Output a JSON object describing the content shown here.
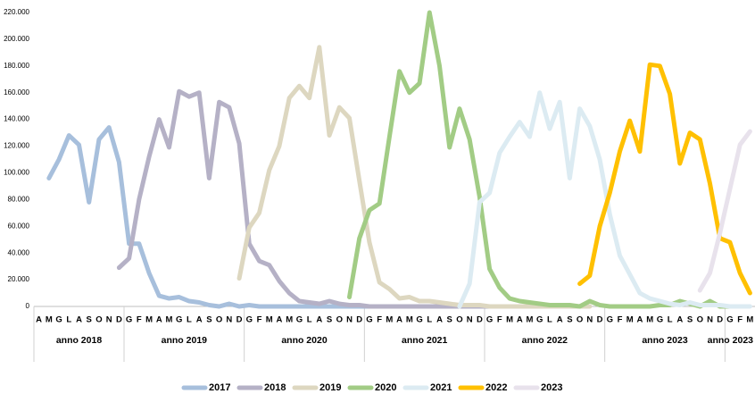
{
  "chart_data": {
    "type": "line",
    "categories": [
      "A",
      "M",
      "G",
      "L",
      "A",
      "S",
      "O",
      "N",
      "D",
      "G",
      "F",
      "M",
      "A",
      "M",
      "G",
      "L",
      "A",
      "S",
      "O",
      "N",
      "D",
      "G",
      "F",
      "M",
      "A",
      "M",
      "G",
      "L",
      "A",
      "S",
      "O",
      "N",
      "D",
      "G",
      "F",
      "M",
      "A",
      "M",
      "G",
      "L",
      "A",
      "S",
      "O",
      "N",
      "D",
      "G",
      "F",
      "M",
      "A",
      "M",
      "G",
      "L",
      "A",
      "S",
      "O",
      "N",
      "D",
      "G",
      "F",
      "M",
      "A",
      "M",
      "G",
      "L",
      "A",
      "S",
      "O",
      "N",
      "D",
      "G",
      "F",
      "M"
    ],
    "groups": [
      {
        "label": "anno 2018",
        "span": 9
      },
      {
        "label": "anno 2019",
        "span": 12
      },
      {
        "label": "anno 2020",
        "span": 12
      },
      {
        "label": "anno 2021",
        "span": 12
      },
      {
        "label": "anno 2022",
        "span": 12
      },
      {
        "label": "anno 2023",
        "span": 12
      },
      {
        "label": "anno 2023",
        "span": 3
      }
    ],
    "ylim": [
      0,
      220000
    ],
    "yticks": [
      0,
      {
        "value": 20000,
        "label": "20.000"
      },
      {
        "value": 40000,
        "label": "40.000"
      },
      {
        "value": 60000,
        "label": "60.000"
      },
      {
        "value": 80000,
        "label": "80.000"
      },
      {
        "value": 100000,
        "label": "100.000"
      },
      {
        "value": 120000,
        "label": "120.000"
      },
      {
        "value": 140000,
        "label": "140.000"
      },
      {
        "value": 160000,
        "label": "160.000"
      },
      {
        "value": 180000,
        "label": "180.000"
      },
      {
        "value": 200000,
        "label": "200.000"
      },
      {
        "value": 220000,
        "label": "220.000"
      }
    ],
    "grid": false,
    "legend": "bottom",
    "series": [
      {
        "name": "2017",
        "color": "#a7bfdc",
        "values": [
          null,
          96000,
          110000,
          128000,
          121000,
          78000,
          125000,
          134000,
          108000,
          47000,
          47000,
          25000,
          8000,
          6000,
          7000,
          4000,
          3000,
          1000,
          0,
          2000,
          0,
          1000,
          0,
          0,
          0,
          0,
          0,
          0,
          0,
          0,
          0,
          0,
          0,
          0,
          0,
          0,
          null,
          null,
          null,
          null,
          null,
          null,
          null,
          null,
          null,
          null,
          null,
          null,
          null,
          null,
          null,
          null,
          null,
          null,
          null,
          null,
          null,
          null,
          null,
          null,
          null,
          null,
          null,
          null,
          null,
          null,
          null,
          null,
          null,
          null,
          null,
          null
        ]
      },
      {
        "name": "2018",
        "color": "#b5b1c6",
        "values": [
          null,
          null,
          null,
          null,
          null,
          null,
          null,
          null,
          29000,
          36000,
          80000,
          112000,
          140000,
          119000,
          161000,
          157000,
          160000,
          96000,
          153000,
          149000,
          122000,
          47000,
          34000,
          31000,
          19000,
          10000,
          4000,
          3000,
          2000,
          4000,
          2000,
          1000,
          1000,
          0,
          0,
          0,
          0,
          0,
          0,
          0,
          0,
          0,
          0,
          0,
          0,
          0,
          null,
          null,
          null,
          null,
          null,
          null,
          null,
          null,
          null,
          null,
          null,
          null,
          null,
          null,
          null,
          null,
          null,
          null,
          null,
          null,
          null,
          null,
          null,
          null,
          null,
          null
        ]
      },
      {
        "name": "2019",
        "color": "#ddd7c0",
        "values": [
          null,
          null,
          null,
          null,
          null,
          null,
          null,
          null,
          null,
          null,
          null,
          null,
          null,
          null,
          null,
          null,
          null,
          null,
          null,
          null,
          21000,
          59000,
          70000,
          102000,
          120000,
          156000,
          165000,
          156000,
          194000,
          128000,
          149000,
          141000,
          94000,
          48000,
          18000,
          13000,
          6000,
          7000,
          4000,
          4000,
          3000,
          2000,
          1000,
          1000,
          1000,
          0,
          0,
          0,
          0,
          0,
          0,
          0,
          0,
          0,
          0,
          0,
          null,
          null,
          null,
          null,
          null,
          null,
          null,
          null,
          null,
          null,
          null,
          null,
          null,
          null,
          null,
          null
        ]
      },
      {
        "name": "2020",
        "color": "#a2cc85",
        "values": [
          null,
          null,
          null,
          null,
          null,
          null,
          null,
          null,
          null,
          null,
          null,
          null,
          null,
          null,
          null,
          null,
          null,
          null,
          null,
          null,
          null,
          null,
          null,
          null,
          null,
          null,
          null,
          null,
          null,
          null,
          null,
          7000,
          51000,
          72000,
          77000,
          127000,
          176000,
          160000,
          167000,
          220000,
          180000,
          119000,
          148000,
          125000,
          82000,
          28000,
          14000,
          6000,
          4000,
          3000,
          2000,
          1000,
          1000,
          1000,
          0,
          4000,
          1000,
          0,
          0,
          0,
          0,
          0,
          1000,
          1000,
          4000,
          2000,
          0,
          4000,
          0,
          0,
          null,
          null
        ]
      },
      {
        "name": "2021",
        "color": "#dcebf2",
        "values": [
          null,
          null,
          null,
          null,
          null,
          null,
          null,
          null,
          null,
          null,
          null,
          null,
          null,
          null,
          null,
          null,
          null,
          null,
          null,
          null,
          null,
          null,
          null,
          null,
          null,
          null,
          null,
          null,
          null,
          null,
          null,
          null,
          null,
          null,
          null,
          null,
          null,
          null,
          null,
          null,
          null,
          null,
          0,
          17000,
          78000,
          85000,
          115000,
          127000,
          138000,
          127000,
          160000,
          133000,
          153000,
          96000,
          148000,
          135000,
          110000,
          69000,
          38000,
          24000,
          10000,
          6000,
          4000,
          2000,
          1000,
          3000,
          1000,
          1000,
          1000,
          0,
          0,
          0
        ]
      },
      {
        "name": "2022",
        "color": "#ffc000",
        "values": [
          null,
          null,
          null,
          null,
          null,
          null,
          null,
          null,
          null,
          null,
          null,
          null,
          null,
          null,
          null,
          null,
          null,
          null,
          null,
          null,
          null,
          null,
          null,
          null,
          null,
          null,
          null,
          null,
          null,
          null,
          null,
          null,
          null,
          null,
          null,
          null,
          null,
          null,
          null,
          null,
          null,
          null,
          null,
          null,
          null,
          null,
          null,
          null,
          null,
          null,
          null,
          null,
          null,
          null,
          17000,
          23000,
          60000,
          85000,
          116000,
          139000,
          116000,
          181000,
          180000,
          159000,
          107000,
          130000,
          125000,
          92000,
          51000,
          48000,
          25000,
          10000
        ]
      },
      {
        "name": "2023",
        "color": "#e8e2ec",
        "values": [
          null,
          null,
          null,
          null,
          null,
          null,
          null,
          null,
          null,
          null,
          null,
          null,
          null,
          null,
          null,
          null,
          null,
          null,
          null,
          null,
          null,
          null,
          null,
          null,
          null,
          null,
          null,
          null,
          null,
          null,
          null,
          null,
          null,
          null,
          null,
          null,
          null,
          null,
          null,
          null,
          null,
          null,
          null,
          null,
          null,
          null,
          null,
          null,
          null,
          null,
          null,
          null,
          null,
          null,
          null,
          null,
          null,
          null,
          null,
          null,
          null,
          null,
          null,
          null,
          null,
          null,
          12000,
          25000,
          55000,
          88000,
          121000,
          131000
        ]
      }
    ]
  }
}
